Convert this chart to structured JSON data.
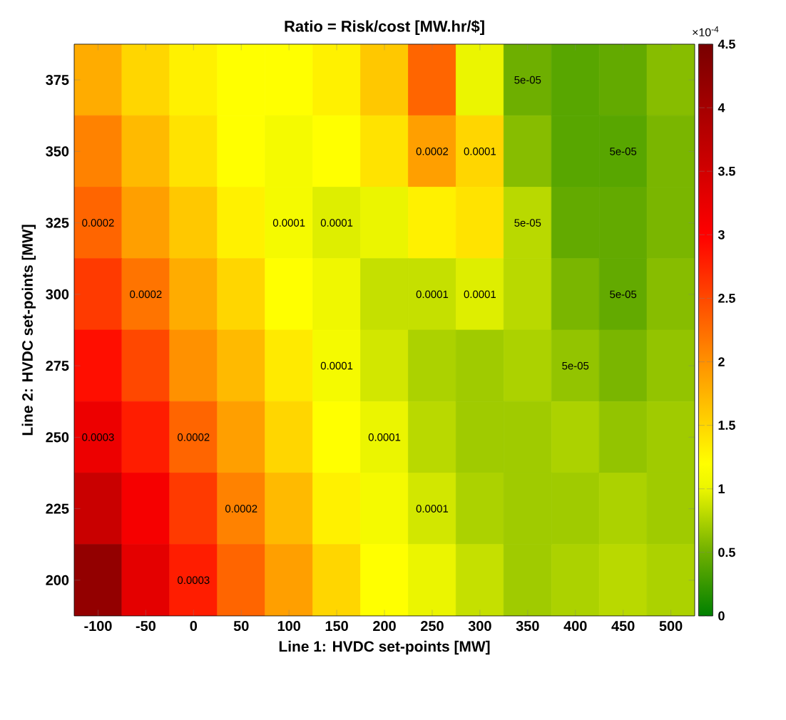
{
  "chart_data": {
    "type": "heatmap",
    "title": "Ratio = Risk/cost [MW.hr/$]",
    "xlabel": "Line 1: HVDC set-points [MW]",
    "ylabel": "Line 2: HVDC set-points [MW]",
    "clabel": "×10$^{-4}$",
    "categories": [
      "-100",
      "-50",
      "0",
      "50",
      "100",
      "150",
      "200",
      "250",
      "300",
      "350",
      "400",
      "450",
      "500"
    ],
    "y_categories": [
      "375",
      "350",
      "325",
      "300",
      "275",
      "250",
      "225",
      "200"
    ],
    "cells": [
      [
        1.8,
        1.5,
        1.3,
        1.2,
        1.2,
        1.3,
        1.6,
        2.3,
        1.0,
        0.5,
        0.4,
        0.45,
        0.6
      ],
      [
        2.1,
        1.7,
        1.4,
        1.2,
        1.1,
        1.2,
        1.4,
        1.9,
        1.5,
        0.6,
        0.4,
        0.4,
        0.55
      ],
      [
        2.3,
        1.9,
        1.6,
        1.3,
        1.1,
        0.95,
        1.0,
        1.3,
        1.4,
        0.8,
        0.45,
        0.45,
        0.55
      ],
      [
        2.6,
        2.2,
        1.8,
        1.5,
        1.2,
        1.05,
        0.85,
        0.85,
        0.95,
        0.8,
        0.55,
        0.45,
        0.6
      ],
      [
        2.9,
        2.5,
        2.0,
        1.7,
        1.35,
        1.1,
        0.9,
        0.75,
        0.7,
        0.75,
        0.65,
        0.55,
        0.65
      ],
      [
        3.2,
        2.8,
        2.3,
        1.9,
        1.5,
        1.2,
        1.0,
        0.8,
        0.7,
        0.7,
        0.75,
        0.65,
        0.7
      ],
      [
        3.6,
        3.1,
        2.6,
        2.1,
        1.7,
        1.3,
        1.1,
        0.9,
        0.75,
        0.7,
        0.7,
        0.75,
        0.7
      ],
      [
        4.2,
        3.3,
        2.8,
        2.3,
        1.9,
        1.5,
        1.2,
        1.0,
        0.85,
        0.7,
        0.75,
        0.8,
        0.75
      ]
    ],
    "clim": [
      0,
      4.5
    ],
    "cticks": [
      0,
      0.5,
      1,
      1.5,
      2,
      2.5,
      3,
      3.5,
      4,
      4.5
    ],
    "annotations": [
      "0.0002",
      "0.0002",
      "0.0002",
      "0.0002",
      "0.0002",
      "0.0003",
      "0.0003",
      "0.0001",
      "0.0001",
      "0.0001",
      "0.0001",
      "0.0001",
      "0.0001",
      "0.0001",
      "0.0001",
      "5e-05",
      "5e-05",
      "5e-05",
      "5e-05",
      "5e-05"
    ]
  }
}
